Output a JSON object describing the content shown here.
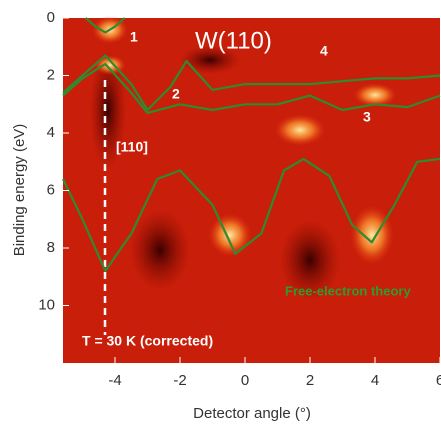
{
  "chart_data": {
    "type": "line",
    "title": "W(110)",
    "x_label": "Detector angle (°)",
    "y_label": "Binding energy (eV)",
    "annotations": [
      "1",
      "2",
      "3",
      "4",
      "[110]",
      "T = 30 K (corrected)"
    ],
    "xlim": [
      -5.6,
      6.0
    ],
    "xticks": [
      -4,
      -2,
      0,
      2,
      4,
      6
    ],
    "ylim": [
      12,
      0
    ],
    "yticks": [
      0,
      2,
      4,
      6,
      8,
      10
    ],
    "series": [
      {
        "name": "Free-electron theory",
        "color": "#2e8b2e",
        "x": [
          -5.6,
          -5,
          -4.3,
          -3.5,
          -2.7,
          -2,
          -1,
          -0.3,
          0.5,
          1.2,
          1.8,
          2.6,
          3.3,
          3.9,
          4.6,
          5.3,
          6
        ],
        "values": [
          5.6,
          7,
          8.8,
          7.5,
          5.6,
          5.3,
          6.5,
          8.2,
          7.5,
          5.3,
          4.9,
          5.5,
          7.2,
          7.8,
          6.5,
          5.0,
          4.9
        ]
      },
      {
        "color": "#2e8b2e",
        "x": [
          -5.6,
          -5,
          -4.3,
          -3.5,
          -3,
          -2.3,
          -1.8,
          -1,
          0,
          1,
          2,
          3,
          4,
          5,
          6
        ],
        "values": [
          2.6,
          2.0,
          1.3,
          2.3,
          3.2,
          2.4,
          1.5,
          2.5,
          2.3,
          2.3,
          2.3,
          2.2,
          2.1,
          2.1,
          2.0
        ]
      },
      {
        "color": "#2e8b2e",
        "x": [
          -5.6,
          -5,
          -4.3,
          -3.5,
          -3,
          -2,
          -1,
          0,
          1,
          2,
          3,
          4,
          5,
          6
        ],
        "values": [
          2.7,
          2.1,
          1.6,
          2.6,
          3.3,
          3.0,
          3.2,
          3.0,
          3.0,
          2.7,
          3.2,
          3.0,
          3.1,
          2.7
        ]
      },
      {
        "color": "#2e8b2e",
        "x": [
          -4.9,
          -4.6,
          -4.3,
          -4.0,
          -3.7
        ],
        "values": [
          0,
          0.3,
          0.5,
          0.3,
          0
        ]
      }
    ]
  }
}
